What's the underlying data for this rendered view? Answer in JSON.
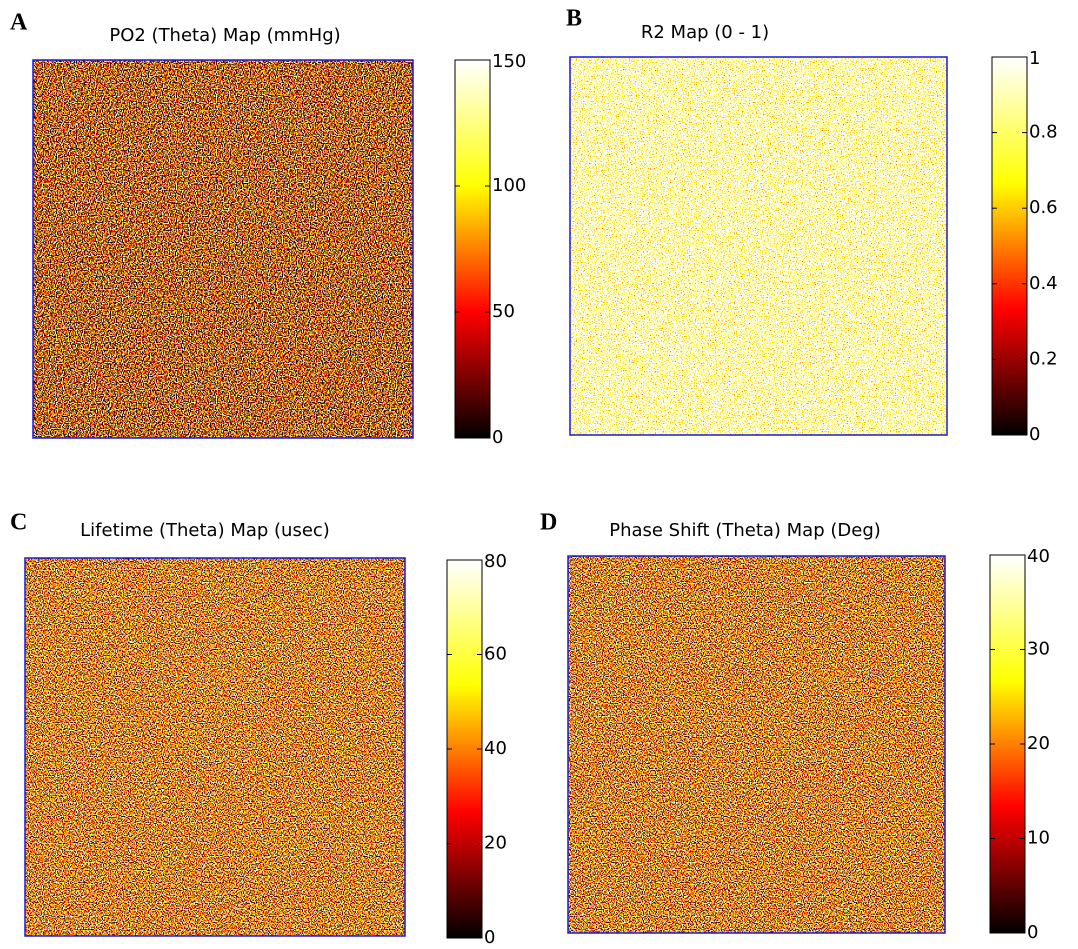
{
  "chart_data": [
    {
      "type": "heatmap",
      "panel_label": "A",
      "title": "PO2 (Theta) Map (mmHg)",
      "colormap": "hot",
      "colorbar": {
        "ylim": [
          0,
          150
        ],
        "yticks": [
          0,
          50,
          100,
          150
        ]
      }
    },
    {
      "type": "heatmap",
      "panel_label": "B",
      "title": "R2 Map (0 - 1)",
      "colormap": "hot",
      "colorbar": {
        "ylim": [
          0,
          1
        ],
        "yticks": [
          0,
          0.2,
          0.4,
          0.6,
          0.8,
          1
        ]
      }
    },
    {
      "type": "heatmap",
      "panel_label": "C",
      "title": "Lifetime (Theta) Map (usec)",
      "colormap": "hot",
      "colorbar": {
        "ylim": [
          0,
          80
        ],
        "yticks": [
          0,
          20,
          40,
          60,
          80
        ]
      }
    },
    {
      "type": "heatmap",
      "panel_label": "D",
      "title": "Phase Shift (Theta) Map (Deg)",
      "colormap": "hot",
      "colorbar": {
        "ylim": [
          0,
          40
        ],
        "yticks": [
          0,
          10,
          20,
          30,
          40
        ]
      }
    }
  ]
}
